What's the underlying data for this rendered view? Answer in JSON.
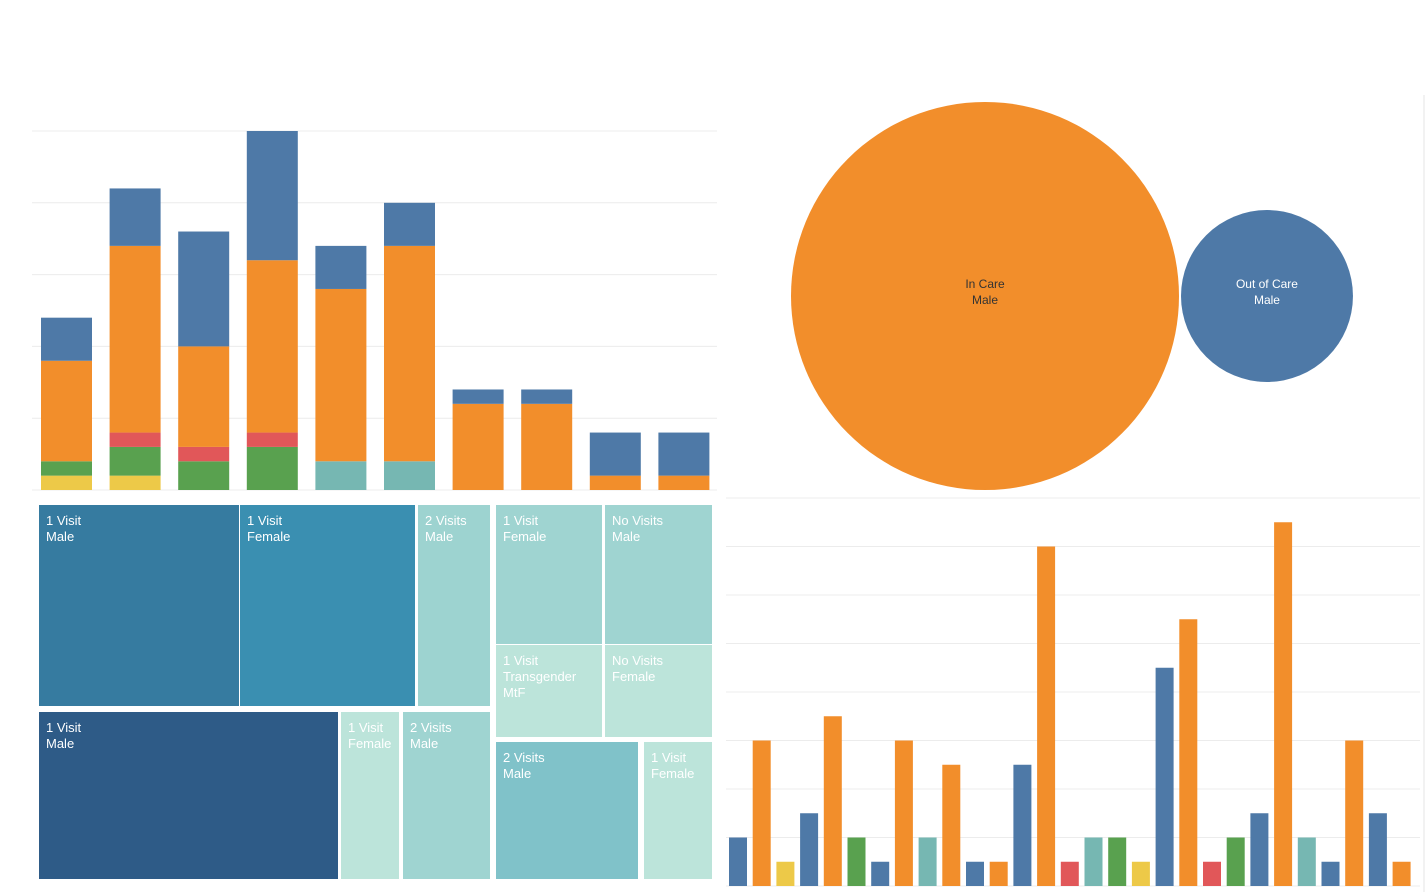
{
  "chart_data": [
    {
      "type": "stacked-bar",
      "categories": [
        null,
        null,
        null,
        null,
        null,
        null,
        null,
        null,
        null,
        null
      ],
      "ylim": [
        0,
        25
      ],
      "yticks": [
        0,
        5,
        10,
        15,
        20,
        25
      ],
      "grid": true,
      "series": [
        {
          "color": "#edc948",
          "values": [
            1,
            1,
            0,
            0,
            0,
            0,
            0,
            0,
            0,
            0
          ]
        },
        {
          "color": "#59a14f",
          "values": [
            1,
            2,
            2,
            3,
            0,
            0,
            0,
            0,
            0,
            0
          ]
        },
        {
          "color": "#76b7b2",
          "values": [
            0,
            0,
            0,
            0,
            2,
            2,
            0,
            0,
            0,
            0
          ]
        },
        {
          "color": "#e15759",
          "values": [
            0,
            1,
            1,
            1,
            0,
            0,
            0,
            0,
            0,
            0
          ]
        },
        {
          "color": "#f28e2b",
          "values": [
            7,
            13,
            7,
            12,
            12,
            15,
            6,
            6,
            1,
            1
          ]
        },
        {
          "color": "#4e79a7",
          "values": [
            3,
            4,
            8,
            9,
            3,
            3,
            1,
            1,
            3,
            3
          ]
        }
      ]
    },
    {
      "type": "bubble",
      "bubbles": [
        {
          "lines": [
            "In Care",
            "Male"
          ],
          "value": 112,
          "color": "#f28e2b"
        },
        {
          "lines": [
            "Out of Care",
            "Male"
          ],
          "value": 22,
          "color": "#4e79a7"
        }
      ]
    },
    {
      "type": "treemap",
      "tiles": [
        {
          "lines": [
            "1 Visit",
            "Male"
          ],
          "value": 20,
          "color": "#367ba0"
        },
        {
          "lines": [
            "1 Visit",
            "Female"
          ],
          "value": 18,
          "color": "#3a8fb1"
        },
        {
          "lines": [
            "2 Visits",
            "Male"
          ],
          "value": 7,
          "color": "#9dd3d0"
        },
        {
          "lines": [
            "1 Visit",
            "Female"
          ],
          "value": 7,
          "color": "#9fd4d1"
        },
        {
          "lines": [
            "No Visits",
            "Male"
          ],
          "value": 7,
          "color": "#9fd4d1"
        },
        {
          "lines": [
            "1 Visit",
            "Transgender",
            "MtF"
          ],
          "value": 5,
          "color": "#bce4da"
        },
        {
          "lines": [
            "No Visits",
            "Female"
          ],
          "value": 5,
          "color": "#bce4da"
        },
        {
          "lines": [
            "2 Visits",
            "Male"
          ],
          "value": 10,
          "color": "#80c2c9"
        },
        {
          "lines": [
            "1 Visit",
            "Female"
          ],
          "value": 5,
          "color": "#bce4da"
        },
        {
          "lines": [
            "1 Visit",
            "Male"
          ],
          "value": 25,
          "color": "#2e5b87"
        },
        {
          "lines": [
            "1 Visit",
            "Female"
          ],
          "value": 5,
          "color": "#bce4da"
        },
        {
          "lines": [
            "2 Visits",
            "Male"
          ],
          "value": 7,
          "color": "#9fd4d1"
        }
      ]
    },
    {
      "type": "bar",
      "categories": [
        null,
        null,
        null,
        null,
        null,
        null,
        null,
        null,
        null,
        null,
        null,
        null,
        null,
        null,
        null,
        null,
        null,
        null,
        null,
        null,
        null,
        null,
        null,
        null,
        null,
        null,
        null,
        null,
        null
      ],
      "values": [
        2,
        6,
        1,
        3,
        7,
        2,
        1,
        6,
        2,
        5,
        1,
        1,
        5,
        14,
        1,
        2,
        2,
        1,
        9,
        11,
        1,
        2,
        3,
        15,
        2,
        1,
        6,
        3,
        1
      ],
      "colors": [
        "#4e79a7",
        "#f28e2b",
        "#edc948",
        "#4e79a7",
        "#f28e2b",
        "#59a14f",
        "#4e79a7",
        "#f28e2b",
        "#76b7b2",
        "#f28e2b",
        "#4e79a7",
        "#f28e2b",
        "#4e79a7",
        "#f28e2b",
        "#e15759",
        "#76b7b2",
        "#59a14f",
        "#edc948",
        "#4e79a7",
        "#f28e2b",
        "#e15759",
        "#59a14f",
        "#4e79a7",
        "#f28e2b",
        "#76b7b2",
        "#4e79a7",
        "#f28e2b",
        "#4e79a7",
        "#f28e2b"
      ],
      "ylim": [
        0,
        16
      ],
      "yticks": [
        0,
        2,
        4,
        6,
        8,
        10,
        12,
        14,
        16
      ],
      "grid": true
    }
  ]
}
